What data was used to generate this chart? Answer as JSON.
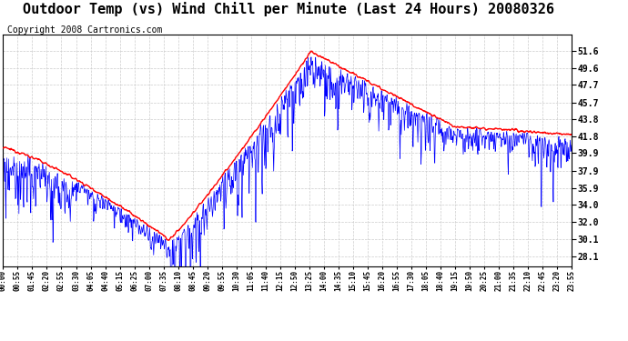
{
  "title": "Outdoor Temp (vs) Wind Chill per Minute (Last 24 Hours) 20080326",
  "copyright": "Copyright 2008 Cartronics.com",
  "yticks": [
    28.1,
    30.1,
    32.0,
    34.0,
    35.9,
    37.9,
    39.9,
    41.8,
    43.8,
    45.7,
    47.7,
    49.6,
    51.6
  ],
  "ylim": [
    27.0,
    53.5
  ],
  "xtick_labels": [
    "00:00",
    "00:55",
    "01:45",
    "02:20",
    "02:55",
    "03:30",
    "04:05",
    "04:40",
    "05:15",
    "06:25",
    "07:00",
    "07:35",
    "08:10",
    "08:45",
    "09:20",
    "09:55",
    "10:30",
    "11:05",
    "11:40",
    "12:15",
    "12:50",
    "13:25",
    "14:00",
    "14:35",
    "15:10",
    "15:45",
    "16:20",
    "16:55",
    "17:30",
    "18:05",
    "18:40",
    "19:15",
    "19:50",
    "20:25",
    "21:00",
    "21:35",
    "22:10",
    "22:45",
    "23:20",
    "23:55"
  ],
  "plot_bg_color": "#ffffff",
  "outer_bg_color": "#ffffff",
  "line_color_temp": "#ff0000",
  "line_color_chill": "#0000ff",
  "grid_color": "#cccccc",
  "title_fontsize": 11,
  "copyright_fontsize": 7
}
